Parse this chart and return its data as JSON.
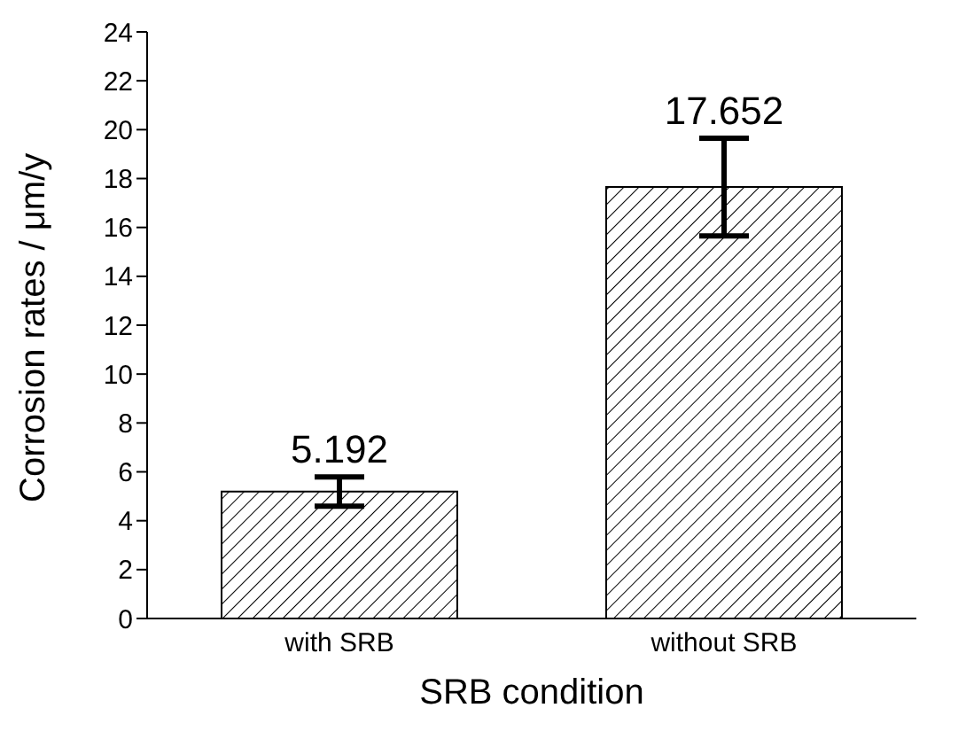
{
  "chart_data": {
    "type": "bar",
    "xlabel": "SRB condition",
    "ylabel": "Corrosion rates / μm/y",
    "categories": [
      "with SRB",
      "without SRB"
    ],
    "values": [
      5.192,
      17.652
    ],
    "errors": [
      0.6,
      2.0
    ],
    "color": "#000000",
    "data_labels": true,
    "ylim": [
      0,
      24
    ],
    "yticks": [
      0,
      2,
      4,
      6,
      8,
      10,
      12,
      14,
      16,
      18,
      20,
      22,
      24
    ],
    "grid": false
  }
}
